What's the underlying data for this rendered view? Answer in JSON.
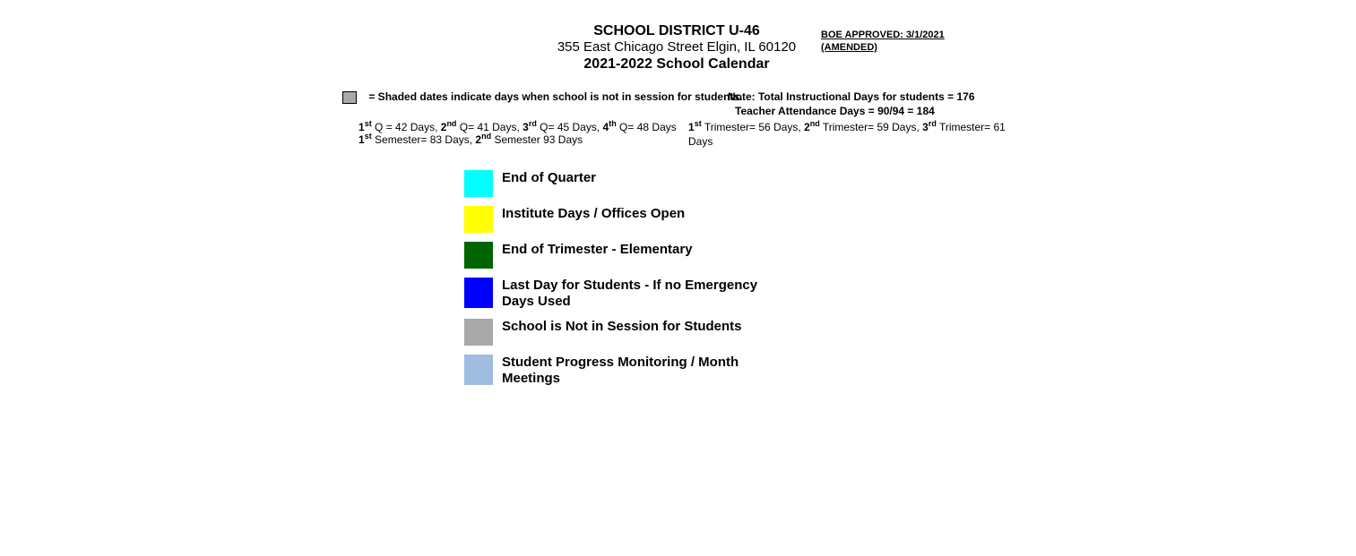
{
  "header": {
    "district": "SCHOOL DISTRICT U-46",
    "address": "355 East Chicago Street Elgin, IL 60120",
    "subtitle": "2021-2022 School Calendar",
    "approved_line1": "BOE APPROVED:  3/1/2021",
    "approved_line2": "(AMENDED)"
  },
  "notes": {
    "shaded_text": "=   Shaded dates indicate days when school is not in session for students.",
    "instr_days": "Note:  Total Instructional Days for students = 176",
    "teacher_days": "Teacher Attendance Days = 90/94 = 184",
    "q1_label": "1",
    "q1_sup": "st",
    "q1_text": " Q = 42 Days, ",
    "q2_label": "2",
    "q2_sup": "nd",
    "q2_text": " Q= 41 Days, ",
    "q3_label": "3",
    "q3_sup": "rd",
    "q3_text": " Q= 45 Days, ",
    "q4_label": "4",
    "q4_sup": "th",
    "q4_text": " Q= 48 Days",
    "t1_label": "1",
    "t1_sup": "st",
    "t1_text": " Trimester= 56 Days, ",
    "t2_label": "2",
    "t2_sup": "nd",
    "t2_text": " Trimester= 59 Days, ",
    "t3_label": "3",
    "t3_sup": "rd",
    "t3_text": " Trimester= 61 Days",
    "s1_label": "1",
    "s1_sup": "st",
    "s1_text": " Semester= 83 Days, ",
    "s2_label": "2",
    "s2_sup": "nd",
    "s2_text": " Semester 93 Days"
  },
  "legend": {
    "items": [
      {
        "color": "#00ffff",
        "label": "End of Quarter"
      },
      {
        "color": "#ffff00",
        "label": "Institute Days / Offices Open"
      },
      {
        "color": "#006400",
        "label": "End of Trimester -  Elementary"
      },
      {
        "color": "#0000ff",
        "label": "Last Day for Students - If no Emergency Days Used"
      },
      {
        "color": "#a9a9a9",
        "label": "School is Not in Session for Students"
      },
      {
        "color": "#9ebddf",
        "label": "Student Progress Monitoring / Month Meetings"
      }
    ]
  }
}
